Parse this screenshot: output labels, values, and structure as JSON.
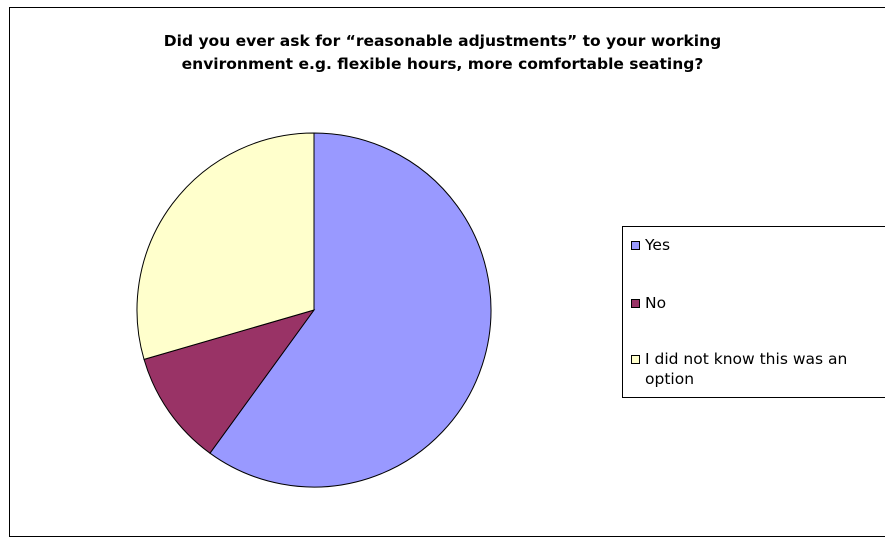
{
  "chart_data": {
    "type": "pie",
    "title_lines": [
      "Did you ever ask for “reasonable adjustments” to your working",
      "environment e.g. flexible hours, more comfortable seating?"
    ],
    "slices": [
      {
        "label": "Yes",
        "value": 60,
        "color": "#9999FF"
      },
      {
        "label": "No",
        "value": 10.5,
        "color": "#993366"
      },
      {
        "label": "I did not know this was an option",
        "value": 29.5,
        "color": "#FFFFCC"
      }
    ],
    "start_angle_deg": 0,
    "direction": "clockwise",
    "legend_position": "right"
  }
}
